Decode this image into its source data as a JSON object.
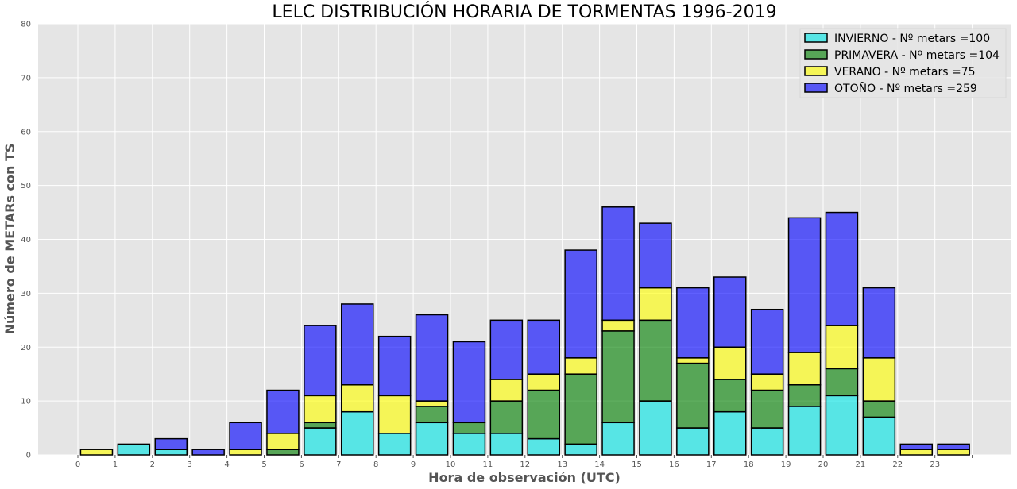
{
  "chart_data": {
    "type": "bar",
    "stacked": true,
    "title": "LELC DISTRIBUCIÓN HORARIA DE TORMENTAS 1996-2019",
    "xlabel": "Hora de observación (UTC)",
    "ylabel": "Número de METARs con TS",
    "ylim": [
      0,
      80
    ],
    "yticks": [
      0,
      10,
      20,
      30,
      40,
      50,
      60,
      70,
      80
    ],
    "xticks": [
      "0",
      "1",
      "2",
      "3",
      "4",
      "5",
      "6",
      "7",
      "8",
      "9",
      "10",
      "11",
      "12",
      "13",
      "14",
      "15",
      "16",
      "17",
      "18",
      "19",
      "20",
      "21",
      "22",
      "23"
    ],
    "categories": [
      "0",
      "1",
      "2",
      "3",
      "4",
      "5",
      "6",
      "7",
      "8",
      "9",
      "10",
      "11",
      "12",
      "13",
      "14",
      "15",
      "16",
      "17",
      "18",
      "19",
      "20",
      "21",
      "22",
      "23"
    ],
    "grid": true,
    "legend_position": "top-right",
    "series": [
      {
        "name": "INVIERNO - Nº metars =100",
        "color": "#00e5e5",
        "values": [
          0,
          2,
          1,
          0,
          0,
          0,
          5,
          8,
          4,
          6,
          4,
          4,
          3,
          2,
          6,
          10,
          5,
          8,
          5,
          9,
          11,
          7,
          0,
          0
        ]
      },
      {
        "name": "PRIMAVERA - Nº metars =104",
        "color": "#008000",
        "values": [
          0,
          0,
          0,
          0,
          0,
          1,
          1,
          0,
          0,
          3,
          2,
          6,
          9,
          13,
          17,
          15,
          12,
          6,
          7,
          4,
          5,
          3,
          0,
          0
        ]
      },
      {
        "name": "VERANO - Nº metars =75",
        "color": "#ffff00",
        "values": [
          1,
          0,
          0,
          0,
          1,
          3,
          5,
          5,
          7,
          1,
          0,
          4,
          3,
          3,
          2,
          6,
          1,
          6,
          3,
          6,
          8,
          8,
          1,
          1
        ]
      },
      {
        "name": "OTOÑO - Nº metars =259",
        "color": "#0000ff",
        "values": [
          0,
          0,
          2,
          1,
          5,
          8,
          13,
          15,
          11,
          16,
          15,
          11,
          10,
          20,
          21,
          12,
          13,
          13,
          12,
          25,
          21,
          13,
          1,
          1
        ]
      }
    ]
  }
}
